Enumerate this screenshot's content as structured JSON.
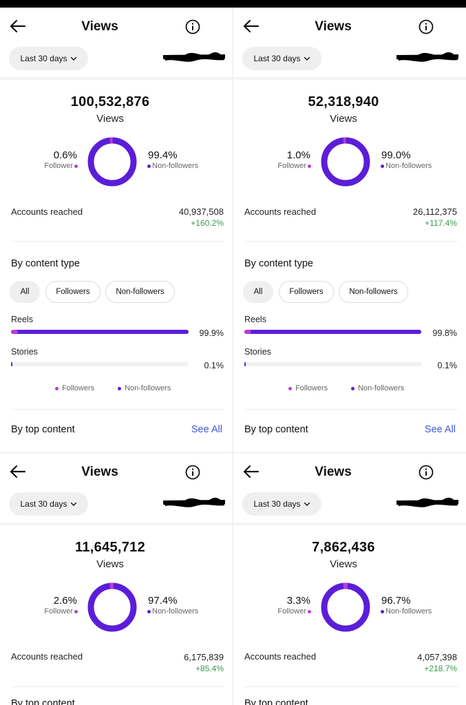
{
  "colors": {
    "followers": "#b93cd3",
    "non_followers": "#5b1ed8",
    "positive_change": "#3a9a4f",
    "link": "#3d59d9"
  },
  "panels": [
    {
      "header": {
        "title": "Views",
        "back_icon": "arrow-left-icon",
        "info_icon": "info-icon"
      },
      "range": {
        "label": "Last 30 days"
      },
      "views": {
        "total": "100,532,876",
        "label": "Views"
      },
      "split": {
        "follower_pct": "0.6%",
        "follower_label": "Follower",
        "non_follower_pct": "99.4%",
        "non_follower_label": "Non-followers",
        "follower_fraction": 0.006
      },
      "reach": {
        "label": "Accounts reached",
        "value": "40,937,508",
        "change": "+160.2%"
      },
      "content_type": {
        "title": "By content type",
        "filters": [
          "All",
          "Followers",
          "Non-followers"
        ],
        "rows": [
          {
            "label": "Reels",
            "pct": "99.9%",
            "value": 0.999,
            "follower_share": 0.04
          },
          {
            "label": "Stories",
            "pct": "0.1%",
            "value": 0.001,
            "follower_share": 0.0
          }
        ],
        "legend": [
          "Followers",
          "Non-followers"
        ]
      },
      "top_content": {
        "title": "By top content",
        "see_all": "See All"
      }
    },
    {
      "header": {
        "title": "Views",
        "back_icon": "arrow-left-icon",
        "info_icon": "info-icon"
      },
      "range": {
        "label": "Last 30 days"
      },
      "views": {
        "total": "52,318,940",
        "label": "Views"
      },
      "split": {
        "follower_pct": "1.0%",
        "follower_label": "Follower",
        "non_follower_pct": "99.0%",
        "non_follower_label": "Non-followers",
        "follower_fraction": 0.01
      },
      "reach": {
        "label": "Accounts reached",
        "value": "26,112,375",
        "change": "+117.4%"
      },
      "content_type": {
        "title": "By content type",
        "filters": [
          "All",
          "Followers",
          "Non-followers"
        ],
        "rows": [
          {
            "label": "Reels",
            "pct": "99.8%",
            "value": 0.998,
            "follower_share": 0.04
          },
          {
            "label": "Stories",
            "pct": "0.1%",
            "value": 0.001,
            "follower_share": 0.0
          }
        ],
        "legend": [
          "Followers",
          "Non-followers"
        ]
      },
      "top_content": {
        "title": "By top content",
        "see_all": "See All"
      }
    },
    {
      "header": {
        "title": "Views",
        "back_icon": "arrow-left-icon",
        "info_icon": "info-icon"
      },
      "range": {
        "label": "Last 30 days"
      },
      "views": {
        "total": "11,645,712",
        "label": "Views"
      },
      "split": {
        "follower_pct": "2.6%",
        "follower_label": "Follower",
        "non_follower_pct": "97.4%",
        "non_follower_label": "Non-followers",
        "follower_fraction": 0.026
      },
      "reach": {
        "label": "Accounts reached",
        "value": "6,175,839",
        "change": "+85.4%"
      },
      "partial_section": "By top content"
    },
    {
      "header": {
        "title": "Views",
        "back_icon": "arrow-left-icon",
        "info_icon": "info-icon"
      },
      "range": {
        "label": "Last 30 days"
      },
      "views": {
        "total": "7,862,436",
        "label": "Views"
      },
      "split": {
        "follower_pct": "3.3%",
        "follower_label": "Follower",
        "non_follower_pct": "96.7%",
        "non_follower_label": "Non-followers",
        "follower_fraction": 0.033
      },
      "reach": {
        "label": "Accounts reached",
        "value": "4,057,398",
        "change": "+218.7%"
      },
      "partial_section": "By top content"
    }
  ]
}
